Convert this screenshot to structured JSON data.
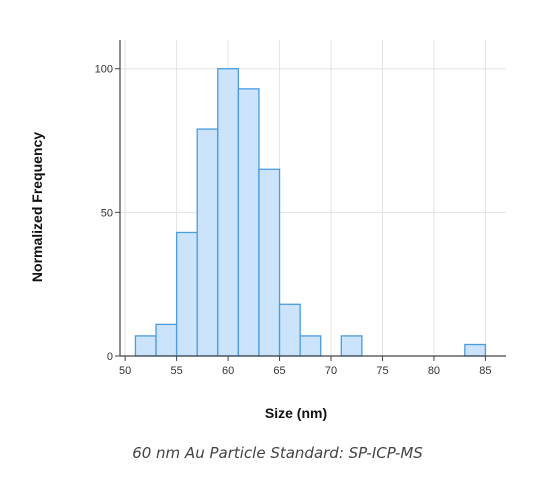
{
  "chart_data": {
    "type": "bar",
    "xlabel": "Size (nm)",
    "ylabel": "Normalized Frequency",
    "bin_width": 2,
    "bin_starts": [
      51,
      53,
      55,
      57,
      59,
      61,
      63,
      65,
      67,
      71,
      83
    ],
    "values": [
      7,
      11,
      43,
      79,
      100,
      93,
      65,
      18,
      7,
      7,
      4
    ],
    "xlim": [
      49.5,
      87
    ],
    "ylim": [
      0,
      110
    ],
    "x_ticks": [
      "50",
      "55",
      "60",
      "65",
      "70",
      "75",
      "80",
      "85"
    ],
    "x_tick_values": [
      50,
      55,
      60,
      65,
      70,
      75,
      80,
      85
    ],
    "y_ticks": [
      "0",
      "50",
      "100"
    ],
    "y_tick_values": [
      0,
      50,
      100
    ],
    "grid": true,
    "bar_fill": "#cce4fb",
    "bar_stroke": "#4a9be0"
  },
  "caption": "60 nm Au Particle Standard: SP-ICP-MS"
}
